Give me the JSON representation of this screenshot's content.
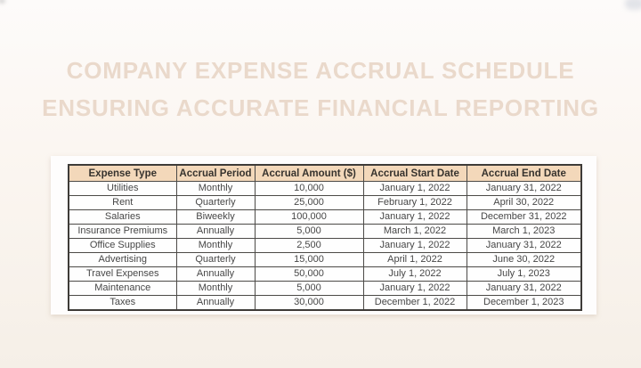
{
  "title": {
    "line1": "COMPANY EXPENSE ACCRUAL SCHEDULE",
    "line2": "ENSURING ACCURATE FINANCIAL REPORTING"
  },
  "colors": {
    "background_cream": "#f8f2eb",
    "title_text": "#ead9cb",
    "header_background": "#f3d8ba",
    "header_text": "#37332e",
    "cell_text": "#474747",
    "grid_border": "#4c4a47",
    "panel_background": "#fefdfd"
  },
  "table": {
    "columns": [
      "Expense Type",
      "Accrual Period",
      "Accrual Amount ($)",
      "Accrual Start Date",
      "Accrual End Date"
    ],
    "rows": [
      [
        "Utilities",
        "Monthly",
        "10,000",
        "January 1, 2022",
        "January 31, 2022"
      ],
      [
        "Rent",
        "Quarterly",
        "25,000",
        "February 1, 2022",
        "April 30, 2022"
      ],
      [
        "Salaries",
        "Biweekly",
        "100,000",
        "January 1, 2022",
        "December 31, 2022"
      ],
      [
        "Insurance Premiums",
        "Annually",
        "5,000",
        "March 1, 2022",
        "March 1, 2023"
      ],
      [
        "Office Supplies",
        "Monthly",
        "2,500",
        "January 1, 2022",
        "January 31, 2022"
      ],
      [
        "Advertising",
        "Quarterly",
        "15,000",
        "April 1, 2022",
        "June 30, 2022"
      ],
      [
        "Travel Expenses",
        "Annually",
        "50,000",
        "July 1, 2022",
        "July 1, 2023"
      ],
      [
        "Maintenance",
        "Monthly",
        "5,000",
        "January 1, 2022",
        "January 31, 2022"
      ],
      [
        "Taxes",
        "Annually",
        "30,000",
        "December 1, 2022",
        "December 1, 2023"
      ]
    ]
  }
}
